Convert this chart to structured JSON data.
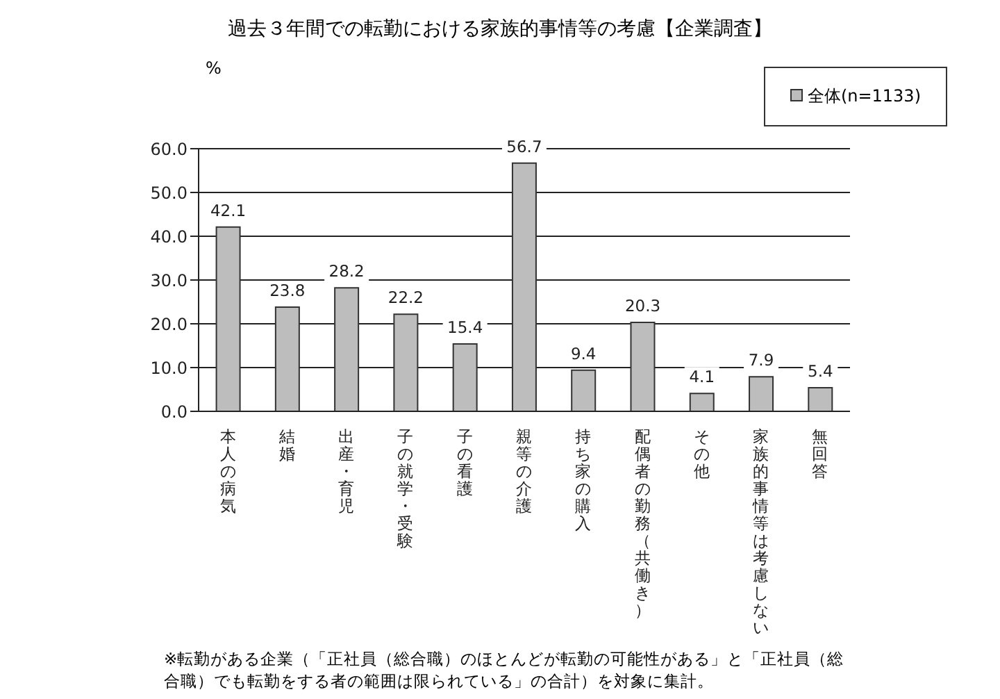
{
  "chart_data": {
    "type": "bar",
    "title": "過去３年間での転勤における家族的事情等の考慮【企業調査】",
    "ylabel": "%",
    "categories": [
      "本人の病気",
      "結婚",
      "出産・育児",
      "子の就学・受験",
      "子の看護",
      "親等の介護",
      "持ち家の購入",
      "配偶者の勤務（共働き）",
      "その他",
      "家族的事情等は考慮しない",
      "無回答"
    ],
    "series": [
      {
        "name": "全体(n=1133)",
        "color": "#bdbdbd",
        "values": [
          42.1,
          23.8,
          28.2,
          22.2,
          15.4,
          56.7,
          9.4,
          20.3,
          4.1,
          7.9,
          5.4
        ]
      }
    ],
    "ylim": [
      0,
      60
    ],
    "yticks": [
      {
        "value": 0,
        "label": "0.0"
      },
      {
        "value": 10,
        "label": "10.0"
      },
      {
        "value": 20,
        "label": "20.0"
      },
      {
        "value": 30,
        "label": "30.0"
      },
      {
        "value": 40,
        "label": "40.0"
      },
      {
        "value": 50,
        "label": "50.0"
      },
      {
        "value": 60,
        "label": "60.0"
      }
    ],
    "grid": "y",
    "legend": "top right",
    "data_labels": true,
    "annotations": [
      "※転勤がある企業（「正社員（総合職）のほとんどが転勤の可能性がある」と「正社員（総合職）でも転勤をする者の範囲は限られている」の合計）を対象に集計。"
    ]
  }
}
